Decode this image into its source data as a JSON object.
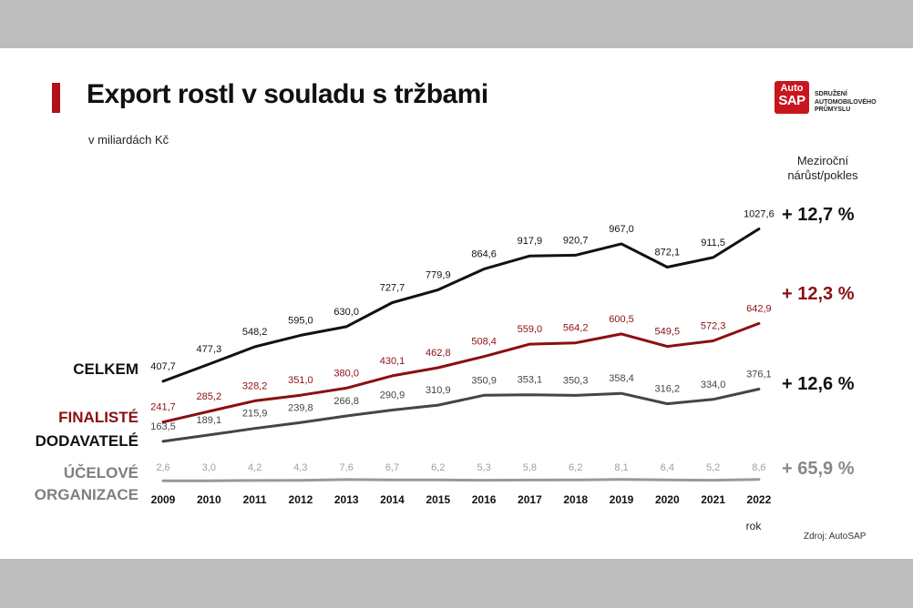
{
  "header": {
    "title": "Export rostl v souladu s tržbami",
    "subtitle": "v miliardách Kč"
  },
  "logo": {
    "brand_top": "Auto",
    "brand_bottom": "SAP",
    "line1": "SDRUŽENÍ",
    "line2": "AUTOMOBILOVÉHO",
    "line3": "PRŮMYSLU"
  },
  "yoy_header": {
    "line1": "Meziroční",
    "line2": "nárůst/pokles"
  },
  "source": "Zdroj: AutoSAP",
  "colors": {
    "brand_red": "#c8161e",
    "title_bar": "#b01218"
  },
  "chart_data": {
    "type": "line",
    "title": "Export rostl v souladu s tržbami",
    "subtitle": "v miliardách Kč",
    "xlabel": "rok",
    "ylabel": "",
    "categories": [
      "2009",
      "2010",
      "2011",
      "2012",
      "2013",
      "2014",
      "2015",
      "2016",
      "2017",
      "2018",
      "2019",
      "2020",
      "2021",
      "2022"
    ],
    "series": [
      {
        "name": "CELKEM",
        "color": "#111111",
        "label_color": "#111111",
        "values": [
          407.7,
          477.3,
          548.2,
          595.0,
          630.0,
          727.7,
          779.9,
          864.6,
          917.9,
          920.7,
          967.0,
          872.1,
          911.5,
          1027.6
        ],
        "labels": [
          "407,7",
          "477,3",
          "548,2",
          "595,0",
          "630,0",
          "727,7",
          "779,9",
          "864,6",
          "917,9",
          "920,7",
          "967,0",
          "872,1",
          "911,5",
          "1027,6"
        ],
        "yoy": "+ 12,7 %"
      },
      {
        "name": "FINALISTÉ",
        "color": "#8b0f12",
        "label_color": "#8b0f12",
        "values": [
          241.7,
          285.2,
          328.2,
          351.0,
          380.0,
          430.1,
          462.8,
          508.4,
          559.0,
          564.2,
          600.5,
          549.5,
          572.3,
          642.9
        ],
        "labels": [
          "241,7",
          "285,2",
          "328,2",
          "351,0",
          "380,0",
          "430,1",
          "462,8",
          "508,4",
          "559,0",
          "564,2",
          "600,5",
          "549,5",
          "572,3",
          "642,9"
        ],
        "yoy": "+ 12,3 %"
      },
      {
        "name": "DODAVATELÉ",
        "color": "#454545",
        "label_color": "#444444",
        "values": [
          163.5,
          189.1,
          215.9,
          239.8,
          266.8,
          290.9,
          310.9,
          350.9,
          353.1,
          350.3,
          358.4,
          316.2,
          334.0,
          376.1
        ],
        "labels": [
          "163,5",
          "189,1",
          "215,9",
          "239,8",
          "266,8",
          "290,9",
          "310,9",
          "350,9",
          "353,1",
          "350,3",
          "358,4",
          "316,2",
          "334,0",
          "376,1"
        ],
        "yoy": "+ 12,6 %"
      },
      {
        "name": "ÚČELOVÉ ORGANIZACE",
        "color": "#999999",
        "label_color": "#a0a0a0",
        "values": [
          2.6,
          3.0,
          4.2,
          4.3,
          7.6,
          6.7,
          6.2,
          5.3,
          5.8,
          6.2,
          8.1,
          6.4,
          5.2,
          8.6
        ],
        "labels": [
          "2,6",
          "3,0",
          "4,2",
          "4,3",
          "7,6",
          "6,7",
          "6,2",
          "5,3",
          "5,8",
          "6,2",
          "8,1",
          "6,4",
          "5,2",
          "8,6"
        ],
        "yoy": "+ 65,9 %"
      }
    ],
    "grid": false,
    "legend": "left"
  }
}
